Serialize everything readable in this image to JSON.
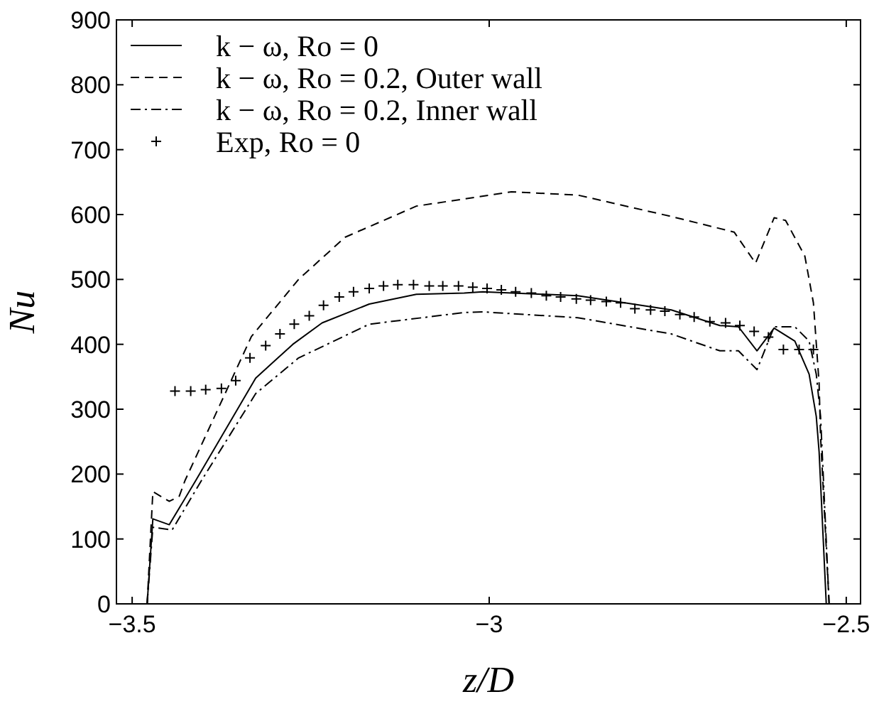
{
  "chart_data": {
    "type": "line",
    "xlabel": "z/D",
    "ylabel": "Nu",
    "xlim": [
      -3.522,
      -2.48
    ],
    "ylim": [
      0,
      900
    ],
    "xticks": [
      -3.5,
      -3,
      -2.5
    ],
    "yticks": [
      0,
      100,
      200,
      300,
      400,
      500,
      600,
      700,
      800,
      900
    ],
    "grid": false,
    "legend": "top left",
    "series": [
      {
        "name": "k − ω, Ro = 0",
        "color": "#000000",
        "line_style": "solid",
        "marker": "none",
        "x": [
          -3.479,
          -3.471,
          -3.448,
          -3.411,
          -3.327,
          -3.275,
          -3.234,
          -3.168,
          -3.102,
          -3.035,
          -3.009,
          -2.876,
          -2.81,
          -2.745,
          -2.677,
          -2.651,
          -2.625,
          -2.601,
          -2.572,
          -2.552,
          -2.542,
          -2.538,
          -2.528
        ],
        "values": [
          0,
          131,
          122,
          190,
          348,
          400,
          433,
          462,
          477,
          479,
          481,
          475,
          464,
          453,
          429,
          427,
          390,
          425,
          405,
          354,
          289,
          234,
          0
        ]
      },
      {
        "name": "k − ω, Ro = 0.2, Outer wall",
        "color": "#000000",
        "line_style": "dashed",
        "marker": "none",
        "x": [
          -3.479,
          -3.471,
          -3.448,
          -3.434,
          -3.426,
          -3.333,
          -3.267,
          -3.202,
          -3.102,
          -2.969,
          -2.876,
          -2.745,
          -2.657,
          -2.627,
          -2.601,
          -2.585,
          -2.558,
          -2.546,
          -2.538,
          -2.536,
          -2.524
        ],
        "values": [
          0,
          173,
          158,
          166,
          190,
          412,
          500,
          565,
          613,
          635,
          630,
          597,
          573,
          525,
          595,
          591,
          536,
          464,
          339,
          258,
          0
        ]
      },
      {
        "name": "k − ω, Ro = 0.2, Inner wall",
        "color": "#000000",
        "line_style": "dashdot",
        "marker": "none",
        "x": [
          -3.479,
          -3.471,
          -3.444,
          -3.403,
          -3.327,
          -3.267,
          -3.168,
          -3.035,
          -3.009,
          -2.876,
          -2.745,
          -2.677,
          -2.651,
          -2.625,
          -2.601,
          -2.572,
          -2.552,
          -2.542,
          -2.536,
          -2.524
        ],
        "values": [
          0,
          118,
          114,
          190,
          324,
          379,
          431,
          449,
          450,
          441,
          416,
          390,
          390,
          361,
          427,
          427,
          405,
          354,
          289,
          0
        ]
      },
      {
        "name": "Exp, Ro = 0",
        "type": "scatter",
        "color": "#000000",
        "marker": "cross",
        "x": [
          -3.44,
          -3.418,
          -3.397,
          -3.375,
          -3.355,
          -3.335,
          -3.313,
          -3.293,
          -3.273,
          -3.252,
          -3.232,
          -3.21,
          -3.19,
          -3.168,
          -3.148,
          -3.128,
          -3.106,
          -3.084,
          -3.065,
          -3.043,
          -3.023,
          -3.003,
          -2.983,
          -2.963,
          -2.941,
          -2.92,
          -2.9,
          -2.878,
          -2.858,
          -2.836,
          -2.816,
          -2.796,
          -2.774,
          -2.754,
          -2.733,
          -2.713,
          -2.691,
          -2.669,
          -2.649,
          -2.629,
          -2.609,
          -2.588,
          -2.566,
          -2.546
        ],
        "values": [
          328,
          328,
          330,
          332,
          344,
          379,
          398,
          416,
          431,
          444,
          460,
          473,
          481,
          486,
          490,
          492,
          492,
          490,
          490,
          490,
          488,
          486,
          484,
          481,
          479,
          475,
          473,
          470,
          468,
          466,
          464,
          455,
          453,
          451,
          446,
          442,
          435,
          433,
          429,
          420,
          411,
          392,
          392,
          392
        ]
      }
    ]
  }
}
